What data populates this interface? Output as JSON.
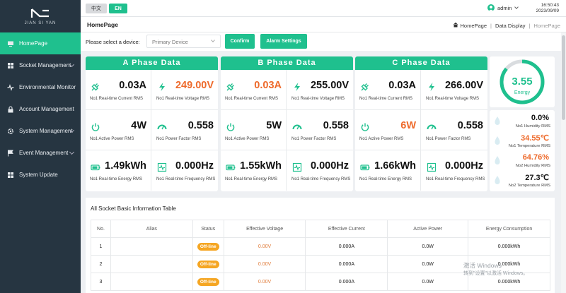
{
  "brand": {
    "logo_text": "JIAN SI YAN"
  },
  "sidebar": {
    "items": [
      {
        "label": "HomePage",
        "icon": "monitor-icon",
        "active": true,
        "has_submenu": false
      },
      {
        "label": "Socket Management",
        "icon": "grid-icon",
        "has_submenu": true
      },
      {
        "label": "Environmental Monitor",
        "icon": "pulse-icon",
        "has_submenu": false
      },
      {
        "label": "Account Management",
        "icon": "lock-icon",
        "has_submenu": false
      },
      {
        "label": "System Management",
        "icon": "gear-icon",
        "has_submenu": true
      },
      {
        "label": "Event Management",
        "icon": "flag-icon",
        "has_submenu": true
      },
      {
        "label": "System Update",
        "icon": "grid-icon",
        "has_submenu": false
      }
    ]
  },
  "topbar": {
    "lang_zh": "中文",
    "lang_en": "EN",
    "user": "admin",
    "time": "16:50:43",
    "date": "2023/09/09"
  },
  "header": {
    "title": "HomePage",
    "breadcrumb": [
      "HomePage",
      "Data Display",
      "HomePage"
    ]
  },
  "device": {
    "label": "Please select a device:",
    "selected": "Primary Device",
    "confirm": "Confirm",
    "alarm": "Alarm Settings"
  },
  "phases": [
    {
      "title": "A Phase Data",
      "current": "0.03A",
      "current_label": "No1 Real-time Current RMS",
      "current_alarm": false,
      "voltage": "249.00V",
      "voltage_label": "No1 Real-time Voltage RMS",
      "voltage_alarm": true,
      "power": "4W",
      "power_label": "No1 Active Power RMS",
      "power_alarm": false,
      "pf": "0.558",
      "pf_label": "No1 Power Factor RMS",
      "energy": "1.49kWh",
      "energy_label": "No1 Real-time Energy RMS",
      "freq": "0.000Hz",
      "freq_label": "No1 Real-time Frequency RMS"
    },
    {
      "title": "B Phase Data",
      "current": "0.03A",
      "current_label": "No1 Real-time Current RMS",
      "current_alarm": true,
      "voltage": "255.00V",
      "voltage_label": "No1 Real-time Voltage RMS",
      "voltage_alarm": false,
      "power": "5W",
      "power_label": "No1 Active Power RMS",
      "power_alarm": false,
      "pf": "0.558",
      "pf_label": "No1 Power Factor RMS",
      "energy": "1.55kWh",
      "energy_label": "No1 Real-time Energy RMS",
      "freq": "0.000Hz",
      "freq_label": "No1 Real-time Frequency RMS"
    },
    {
      "title": "C Phase Data",
      "current": "0.03A",
      "current_label": "No1 Real-time Current RMS",
      "current_alarm": false,
      "voltage": "266.00V",
      "voltage_label": "No1 Real-time Voltage RMS",
      "voltage_alarm": false,
      "power": "6W",
      "power_label": "No1 Active Power RMS",
      "power_alarm": true,
      "pf": "0.558",
      "pf_label": "No1 Power Factor RMS",
      "energy": "1.66kWh",
      "energy_label": "No1 Real-time Energy RMS",
      "freq": "0.000Hz",
      "freq_label": "No1 Real-time Frequency RMS"
    }
  ],
  "energy_gauge": {
    "value": "3.55",
    "label": "Energy",
    "fill_fraction": 0.86
  },
  "environment": [
    {
      "value": "0.0%",
      "label": "No1 Humidity RMS",
      "alarm": false,
      "icon": "humidity-icon"
    },
    {
      "value": "34.55℃",
      "label": "No1 Temperature RMS",
      "alarm": true,
      "icon": "temperature-icon"
    },
    {
      "value": "64.76%",
      "label": "No2 Humidity RMS",
      "alarm": true,
      "icon": "humidity-icon"
    },
    {
      "value": "27.3℃",
      "label": "No2 Temperature RMS",
      "alarm": false,
      "icon": "temperature-icon"
    }
  ],
  "socket_table": {
    "title": "All Socket Basic Information Table",
    "columns": [
      "No.",
      "Alias",
      "Status",
      "Effective Voltage",
      "Effective Current",
      "Active Power",
      "Energy Consumption"
    ],
    "rows": [
      {
        "no": "1",
        "alias": "",
        "status": "Off-line",
        "voltage": "0.00V",
        "current": "0.000A",
        "power": "0.0W",
        "energy": "0.000kWh"
      },
      {
        "no": "2",
        "alias": "",
        "status": "Off-line",
        "voltage": "0.00V",
        "current": "0.000A",
        "power": "0.0W",
        "energy": "0.000kWh"
      },
      {
        "no": "3",
        "alias": "",
        "status": "Off-line",
        "voltage": "0.00V",
        "current": "0.000A",
        "power": "0.0W",
        "energy": "0.000kWh"
      }
    ]
  },
  "watermark": {
    "line1": "激活 Windows",
    "line2": "转到\"设置\"以激活 Windows。"
  },
  "colors": {
    "accent": "#1fc08e",
    "alarm": "#ee6a2b",
    "sidebar": "#263541",
    "badge": "#f5a623"
  }
}
